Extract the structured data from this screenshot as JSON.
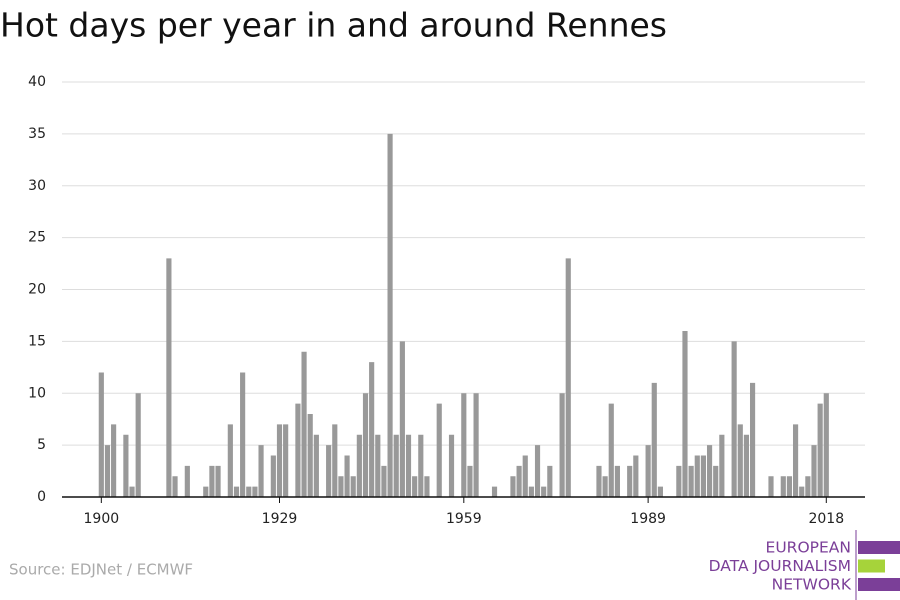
{
  "chart_data": {
    "type": "bar",
    "title": "Hot days per year in and around Rennes",
    "source": "Source: EDJNet / ECMWF",
    "color": "#999999",
    "x": [
      1900,
      1901,
      1902,
      1903,
      1904,
      1905,
      1906,
      1907,
      1908,
      1909,
      1910,
      1911,
      1912,
      1913,
      1914,
      1915,
      1916,
      1917,
      1918,
      1919,
      1920,
      1921,
      1922,
      1923,
      1924,
      1925,
      1926,
      1927,
      1928,
      1929,
      1930,
      1931,
      1932,
      1933,
      1934,
      1935,
      1936,
      1937,
      1938,
      1939,
      1940,
      1941,
      1942,
      1943,
      1944,
      1945,
      1946,
      1947,
      1948,
      1949,
      1950,
      1951,
      1952,
      1953,
      1954,
      1955,
      1956,
      1957,
      1958,
      1959,
      1960,
      1961,
      1962,
      1963,
      1964,
      1965,
      1966,
      1967,
      1968,
      1969,
      1970,
      1971,
      1972,
      1973,
      1974,
      1975,
      1976,
      1977,
      1978,
      1979,
      1980,
      1981,
      1982,
      1983,
      1984,
      1985,
      1986,
      1987,
      1988,
      1989,
      1990,
      1991,
      1992,
      1993,
      1994,
      1995,
      1996,
      1997,
      1998,
      1999,
      2000,
      2001,
      2002,
      2003,
      2004,
      2005,
      2006,
      2007,
      2008,
      2009,
      2010,
      2011,
      2012,
      2013,
      2014,
      2015,
      2016,
      2017,
      2018
    ],
    "values": [
      12,
      5,
      7,
      0,
      6,
      1,
      10,
      0,
      0,
      0,
      0,
      23,
      2,
      0,
      3,
      0,
      0,
      1,
      3,
      3,
      0,
      7,
      1,
      12,
      1,
      1,
      5,
      0,
      4,
      7,
      7,
      0,
      9,
      14,
      8,
      6,
      0,
      5,
      7,
      2,
      4,
      2,
      6,
      10,
      13,
      6,
      3,
      35,
      6,
      15,
      6,
      2,
      6,
      2,
      0,
      9,
      0,
      6,
      0,
      10,
      3,
      10,
      0,
      0,
      1,
      0,
      0,
      2,
      3,
      4,
      1,
      5,
      1,
      3,
      0,
      10,
      23,
      0,
      0,
      0,
      0,
      3,
      2,
      9,
      3,
      0,
      3,
      4,
      0,
      5,
      11,
      1,
      0,
      0,
      3,
      16,
      3,
      4,
      4,
      5,
      3,
      6,
      0,
      15,
      7,
      6,
      11,
      0,
      0,
      2,
      0,
      2,
      2,
      7,
      1,
      2,
      5,
      9,
      10
    ],
    "xlim": [
      1893.6,
      2024.3
    ],
    "xticks": [
      1900,
      1929,
      1959,
      1989,
      2018
    ],
    "ylim": [
      0,
      40
    ],
    "yticks": [
      0,
      5,
      10,
      15,
      20,
      25,
      30,
      35,
      40
    ],
    "grid": true
  },
  "logo": {
    "lines": [
      "EUROPEAN",
      "DATA JOURNALISM",
      "NETWORK"
    ],
    "color": "#7b3f98",
    "accent": "#a6d33a"
  }
}
